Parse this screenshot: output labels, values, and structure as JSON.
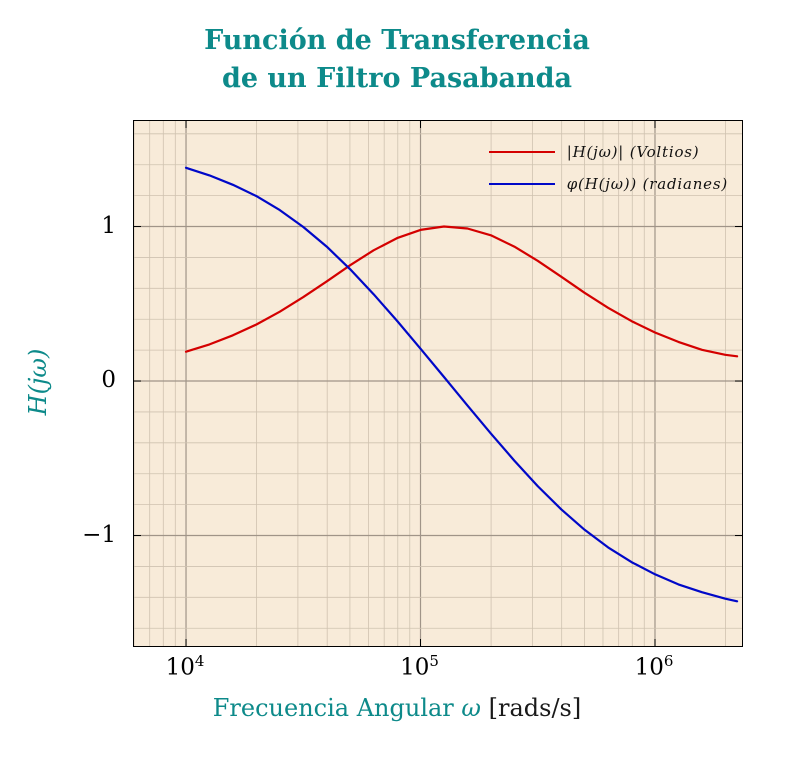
{
  "title": {
    "line1": "Función de Transferencia",
    "line2": "de un Filtro Pasabanda"
  },
  "axes": {
    "y_label": "H(jω)",
    "x_label_main": "Frecuencia Angular",
    "x_label_omega": "ω",
    "x_label_units": "[rads/s]",
    "x_ticks": [
      {
        "base": "10",
        "exp": "4"
      },
      {
        "base": "10",
        "exp": "5"
      },
      {
        "base": "10",
        "exp": "6"
      }
    ],
    "y_ticks": [
      "1",
      "0",
      "−1"
    ]
  },
  "legend": {
    "items": [
      {
        "label": "|H(jω)| (Voltios)",
        "color": "#d40000"
      },
      {
        "label": "φ(H(jω)) (radianes)",
        "color": "#0008c8"
      }
    ]
  },
  "colors": {
    "accent_teal": "#0d8a8a",
    "plot_background": "#f8ebd9",
    "grid_major": "#a09488",
    "grid_minor": "#cfc2b0",
    "frame": "#000000",
    "magnitude_line": "#d40000",
    "phase_line": "#0008c8"
  },
  "chart_data": {
    "type": "line",
    "title": "Función de Transferencia de un Filtro Pasabanda",
    "xlabel": "Frecuencia Angular ω [rads/s]",
    "ylabel": "H(jω)",
    "x_scale": "log",
    "grid": true,
    "legend_position": "top-right",
    "xlim": [
      6000,
      2350000
    ],
    "ylim": [
      -1.715,
      1.683
    ],
    "x_tick_values": [
      10000,
      100000,
      1000000
    ],
    "y_tick_values": [
      1,
      0,
      -1
    ],
    "x": [
      10000,
      12589,
      15849,
      19953,
      25119,
      31623,
      39811,
      50119,
      63096,
      79433,
      100000,
      125893,
      158489,
      199526,
      251189,
      316228,
      398107,
      501187,
      630957,
      794328,
      1000000,
      1258925,
      1584893,
      1995262,
      2238721
    ],
    "series": [
      {
        "name": "|H(jω)| (Voltios)",
        "color": "#d40000",
        "values": [
          0.19,
          0.237,
          0.296,
          0.366,
          0.449,
          0.543,
          0.645,
          0.75,
          0.846,
          0.925,
          0.978,
          1.0,
          0.987,
          0.943,
          0.87,
          0.778,
          0.675,
          0.571,
          0.474,
          0.388,
          0.314,
          0.253,
          0.202,
          0.17,
          0.16
        ]
      },
      {
        "name": "φ(H(jω)) (radianes)",
        "color": "#0008c8",
        "values": [
          1.38,
          1.331,
          1.27,
          1.197,
          1.106,
          0.997,
          0.87,
          0.723,
          0.562,
          0.389,
          0.209,
          0.026,
          -0.158,
          -0.34,
          -0.515,
          -0.68,
          -0.83,
          -0.963,
          -1.077,
          -1.172,
          -1.251,
          -1.316,
          -1.367,
          -1.409,
          -1.426
        ]
      }
    ]
  }
}
